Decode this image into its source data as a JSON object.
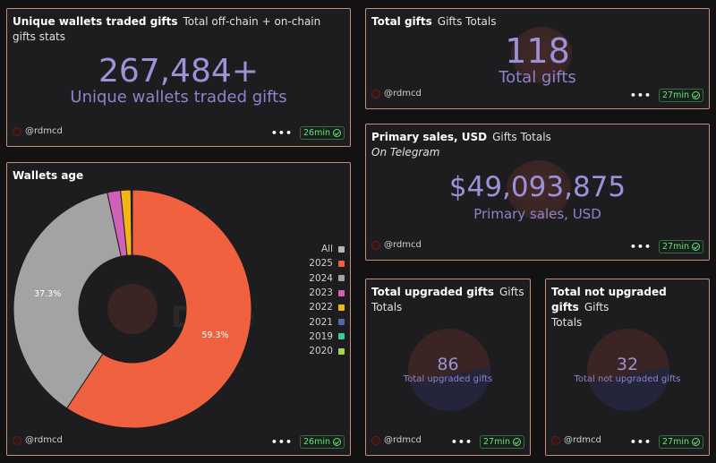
{
  "cards": {
    "unique_wallets": {
      "title": "Unique wallets traded gifts",
      "subtitle": "Total off-chain + on-chain gifts stats",
      "value": "267,484+",
      "label": "Unique wallets traded gifts",
      "author": "@rdmcd",
      "freshness": "26min"
    },
    "total_gifts": {
      "title": "Total gifts",
      "subtitle": "Gifts Totals",
      "value": "118",
      "label": "Total gifts",
      "author": "@rdmcd",
      "freshness": "27min"
    },
    "primary_sales": {
      "title": "Primary sales, USD",
      "subtitle": "Gifts Totals",
      "note": "On Telegram",
      "value": "$49,093,875",
      "label": "Primary sales, USD",
      "author": "@rdmcd",
      "freshness": "27min"
    },
    "wallets_age": {
      "title": "Wallets age",
      "author": "@rdmcd",
      "freshness": "26min",
      "watermark": "Dune"
    },
    "upgraded": {
      "title": "Total upgraded gifts",
      "subtitle": "Gifts",
      "subtitle2": "Totals",
      "value": "86",
      "label": "Total upgraded gifts",
      "author": "@rdmcd",
      "freshness": "27min"
    },
    "not_upgraded": {
      "title": "Total not upgraded gifts",
      "subtitle": "Gifts",
      "subtitle2": "Totals",
      "value": "32",
      "label": "Total not upgraded gifts",
      "author": "@rdmcd",
      "freshness": "27min"
    }
  },
  "menu_glyph": "•••",
  "chart_data": {
    "type": "pie",
    "title": "Wallets age",
    "legend_position": "right",
    "legend_all_label": "All",
    "legend_all_color": "#b5b5b5",
    "slices": [
      {
        "name": "2025",
        "value": 59.3,
        "color": "#f0623f",
        "label": "59.3%"
      },
      {
        "name": "2024",
        "value": 37.3,
        "color": "#a3a3a3",
        "label": "37.3%"
      },
      {
        "name": "2023",
        "value": 1.8,
        "color": "#d060b8",
        "label": ""
      },
      {
        "name": "2022",
        "value": 1.4,
        "color": "#f2b517",
        "label": ""
      },
      {
        "name": "2021",
        "value": 0.1,
        "color": "#5a63b0",
        "label": ""
      },
      {
        "name": "2019",
        "value": 0.05,
        "color": "#3cc99a",
        "label": ""
      },
      {
        "name": "2020",
        "value": 0.05,
        "color": "#a0d84a",
        "label": ""
      }
    ]
  }
}
